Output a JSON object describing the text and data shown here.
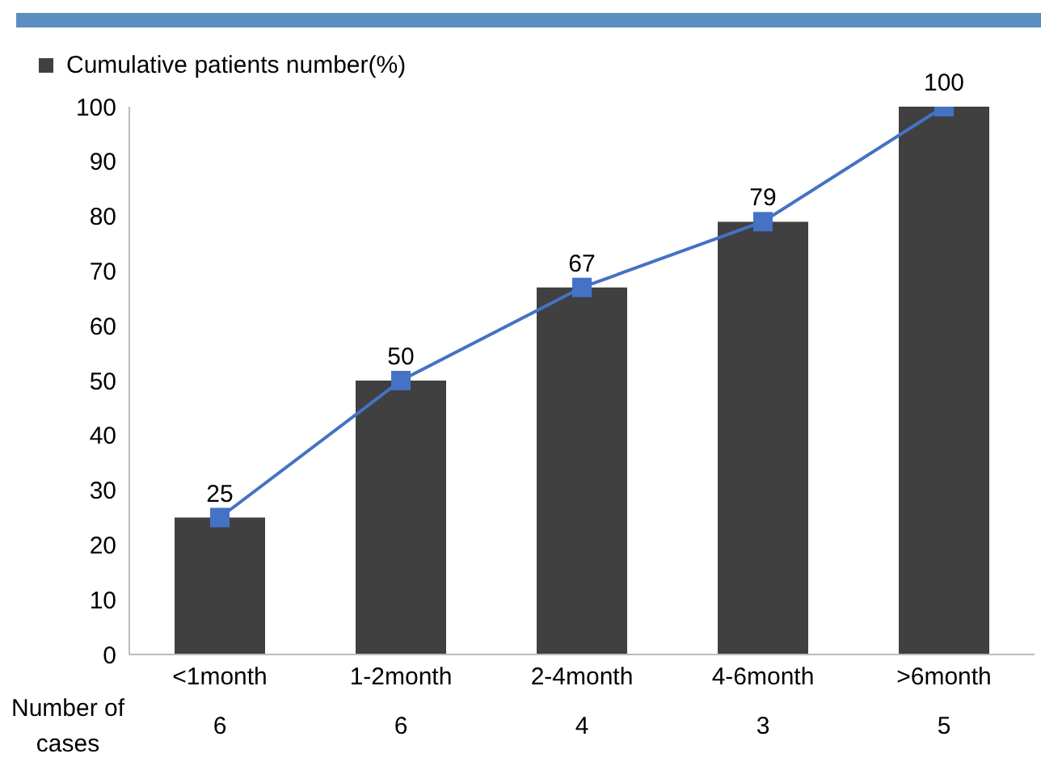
{
  "chart_data": {
    "type": "bar",
    "categories": [
      "<1month",
      "1-2month",
      "2-4month",
      "4-6month",
      ">6month"
    ],
    "series": [
      {
        "name": "Cumulative patients number(%)",
        "color": "#404040",
        "values": [
          25,
          50,
          67,
          79,
          100
        ]
      },
      {
        "type": "line",
        "color": "#4472c4",
        "values": [
          25,
          50,
          67,
          79,
          100
        ],
        "value_labels": [
          "25",
          "50",
          "67",
          "79",
          "100"
        ]
      }
    ],
    "ylim": [
      0,
      100
    ],
    "yticks": [
      0,
      10,
      20,
      30,
      40,
      50,
      60,
      70,
      80,
      90,
      100
    ],
    "grid": false,
    "legend": "top left",
    "marker": "square",
    "line_style": "solid",
    "annotations": [
      "Number of cases",
      "6",
      "6",
      "4",
      "3",
      "5"
    ]
  }
}
